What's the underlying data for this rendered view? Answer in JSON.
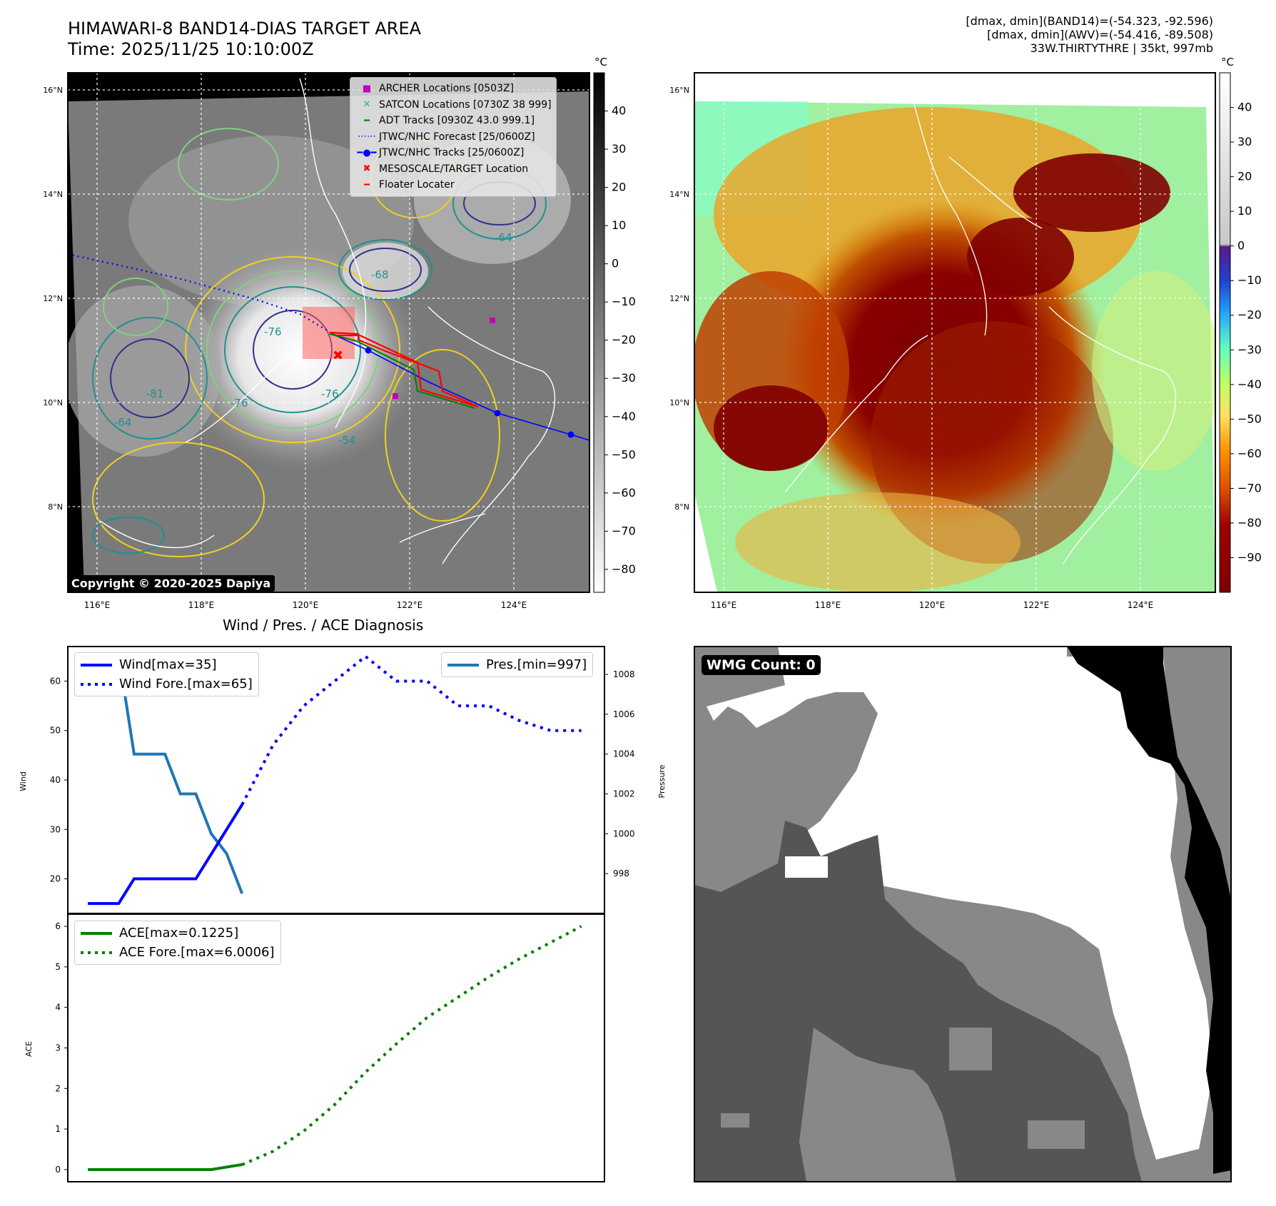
{
  "header": {
    "title_line1": "HIMAWARI-8 BAND14-DIAS TARGET AREA",
    "title_line2": "Time: 2025/11/25 10:10:00Z",
    "right_line1": "[dmax, dmin](BAND14)=(-54.323, -92.596)",
    "right_line2": "[dmax, dmin](AWV)=(-54.416, -89.508)",
    "right_line3": "33W.THIRTYTHRE | 35kt, 997mb"
  },
  "map": {
    "lon_labels": [
      "116°E",
      "118°E",
      "120°E",
      "122°E",
      "124°E"
    ],
    "lat_labels": [
      "16°N",
      "14°N",
      "12°N",
      "10°N",
      "8°N"
    ],
    "copyright": "Copyright © 2020-2025 Dapiya",
    "contour_labels": [
      "-64",
      "-76",
      "-81",
      "-76",
      "-54",
      "-68",
      "-76",
      "-64"
    ],
    "legend": [
      {
        "symbol": "■",
        "color": "#c000c0",
        "label": "ARCHER Locations [0503Z]"
      },
      {
        "symbol": "✕",
        "color": "#20b0b0",
        "label": "SATCON Locations [0730Z 38 999]"
      },
      {
        "symbol": "—",
        "color": "#008000",
        "label": "ADT Tracks [0930Z 43.0 999.1]"
      },
      {
        "symbol": "⋯",
        "color": "#0000ff",
        "label": "JTWC/NHC Forecast [25/0600Z]"
      },
      {
        "symbol": "●",
        "color": "#0000ff",
        "label": "JTWC/NHC Tracks [25/0600Z]"
      },
      {
        "symbol": "✖",
        "color": "#ff0000",
        "label": "MESOSCALE/TARGET Location"
      },
      {
        "symbol": "—",
        "color": "#ff0000",
        "label": "Floater Locater"
      }
    ]
  },
  "colorbar_gray": {
    "unit": "°C",
    "ticks": [
      "40",
      "30",
      "20",
      "10",
      "0",
      "−10",
      "−20",
      "−30",
      "−40",
      "−50",
      "−60",
      "−70",
      "−80"
    ]
  },
  "colorbar_awv": {
    "unit": "°C",
    "ticks": [
      "40",
      "30",
      "20",
      "10",
      "0",
      "−10",
      "−20",
      "−30",
      "−40",
      "−50",
      "−60",
      "−70",
      "−80",
      "−90"
    ]
  },
  "wmg": {
    "label": "WMG Count: 0"
  },
  "diagnosis": {
    "title": "Wind / Pres. / ACE Diagnosis",
    "wind_ylabel": "Wind",
    "pres_ylabel": "Pressure",
    "ace_ylabel": "ACE",
    "wind_legend": [
      "Wind[max=35]",
      "Wind Fore.[max=65]"
    ],
    "pres_legend": [
      "Pres.[min=997]"
    ],
    "ace_legend": [
      "ACE[max=0.1225]",
      "ACE Fore.[max=6.0006]"
    ],
    "wind_ticks": [
      "60",
      "50",
      "40",
      "30",
      "20"
    ],
    "pres_ticks": [
      "1008",
      "1006",
      "1004",
      "1002",
      "1000",
      "998"
    ],
    "ace_ticks": [
      "6",
      "5",
      "4",
      "3",
      "2",
      "1",
      "0"
    ]
  },
  "chart_data": [
    {
      "type": "line",
      "title": "Wind / Pres. / ACE Diagnosis",
      "ylabel": "Wind",
      "ylim": [
        13,
        67
      ],
      "series": [
        {
          "name": "Wind[max=35]",
          "x": [
            0,
            1,
            2,
            3,
            4,
            5,
            6,
            7,
            8,
            9,
            10
          ],
          "values": [
            15,
            15,
            15,
            20,
            20,
            20,
            20,
            20,
            25,
            30,
            35
          ]
        },
        {
          "name": "Wind Fore.[max=65]",
          "x": [
            10,
            12,
            14,
            16,
            18,
            20,
            22,
            24,
            26,
            28,
            30,
            32
          ],
          "values": [
            35,
            47,
            55,
            60,
            65,
            60,
            60,
            55,
            55,
            52,
            50,
            50
          ]
        }
      ]
    },
    {
      "type": "line",
      "ylabel": "Pressure",
      "ylim": [
        996.0,
        1009.4
      ],
      "series": [
        {
          "name": "Pres.[min=997]",
          "x": [
            1,
            2,
            3,
            4,
            5,
            6,
            7,
            8,
            9,
            10
          ],
          "values": [
            1009,
            1009,
            1004,
            1004,
            1004,
            1002,
            1002,
            1000,
            999,
            997
          ]
        }
      ]
    },
    {
      "type": "line",
      "ylabel": "ACE",
      "ylim": [
        -0.3,
        6.3
      ],
      "series": [
        {
          "name": "ACE[max=0.1225]",
          "x": [
            0,
            2,
            4,
            6,
            8,
            9.6,
            10
          ],
          "values": [
            0,
            0,
            0,
            0,
            0,
            0.1,
            0.1225
          ]
        },
        {
          "name": "ACE Fore.[max=6.0006]",
          "x": [
            10,
            12,
            14,
            16,
            18,
            20,
            22,
            24,
            26,
            28,
            30,
            32
          ],
          "values": [
            0.12,
            0.45,
            0.95,
            1.6,
            2.4,
            3.1,
            3.75,
            4.25,
            4.75,
            5.2,
            5.6,
            6.0
          ]
        }
      ]
    }
  ],
  "colors": {
    "wind": "#0000ff",
    "pressure": "#1f77b4",
    "ace": "#008000"
  }
}
